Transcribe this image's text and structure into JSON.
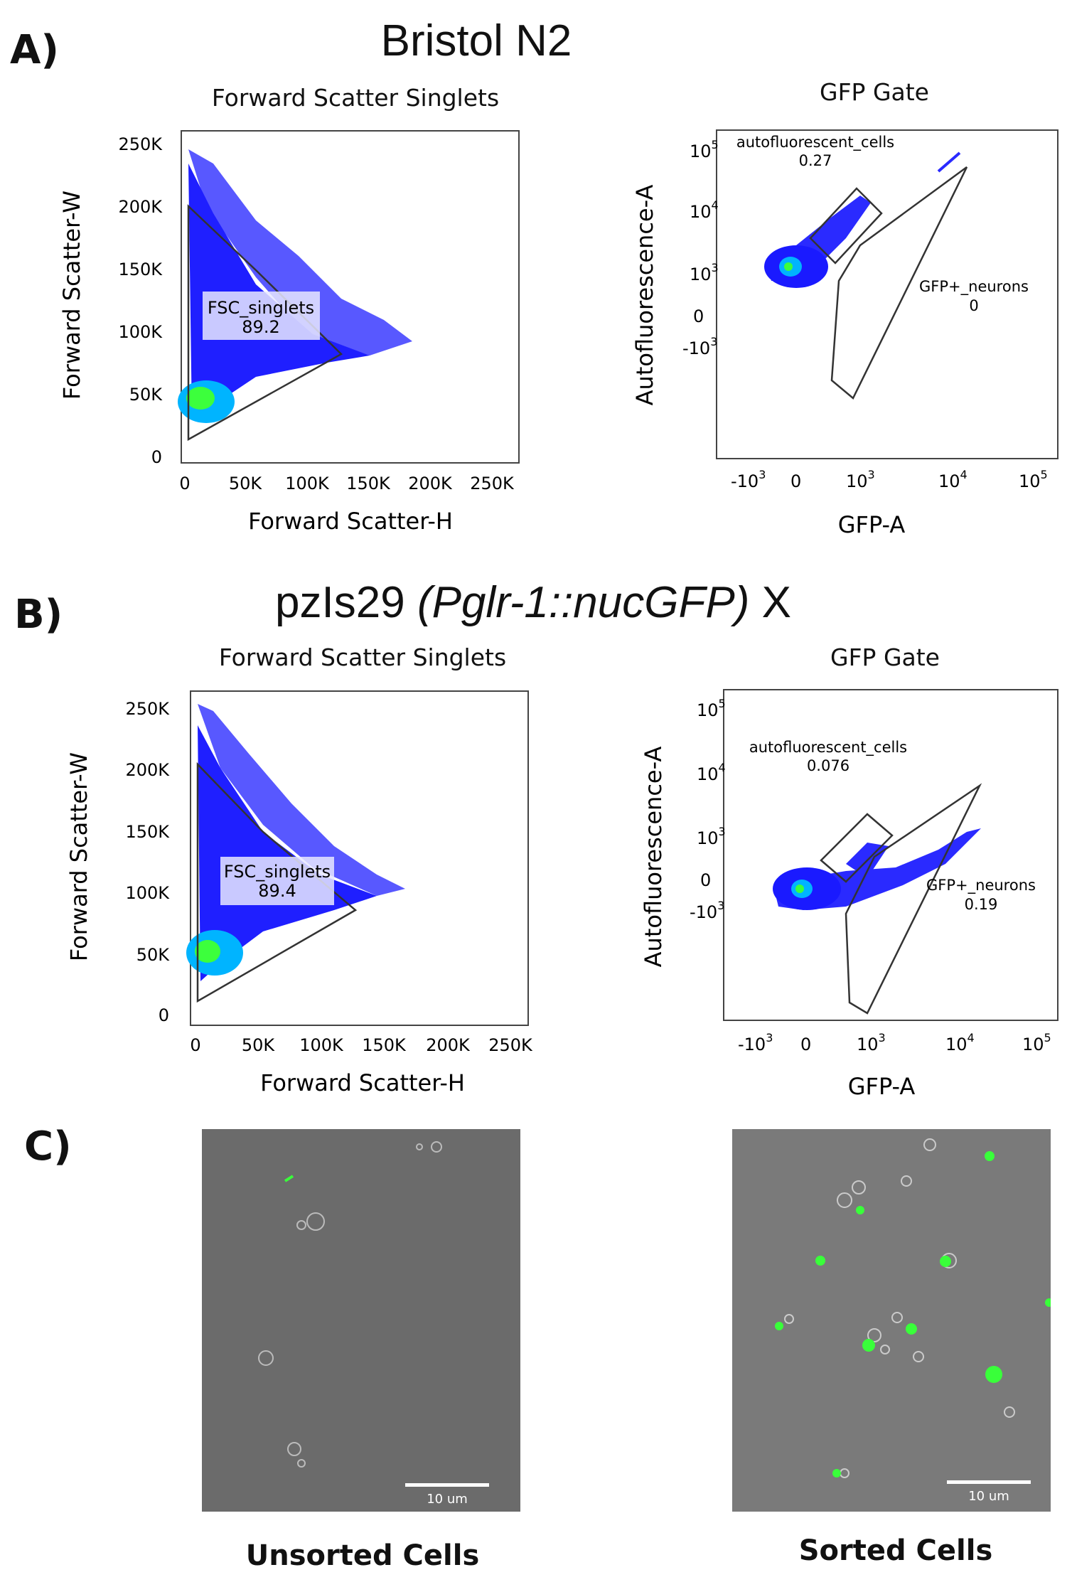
{
  "panels": {
    "A": {
      "letter": "A)",
      "title": "Bristol N2",
      "fsc": {
        "title": "Forward Scatter Singlets",
        "xlabel": "Forward Scatter-H",
        "ylabel": "Forward Scatter-W",
        "x_ticks": [
          "0",
          "50K",
          "100K",
          "150K",
          "200K",
          "250K"
        ],
        "y_ticks": [
          "0",
          "50K",
          "100K",
          "150K",
          "200K",
          "250K"
        ],
        "gate_name": "FSC_singlets",
        "gate_value": "89.2"
      },
      "gfp": {
        "title": "GFP Gate",
        "xlabel": "GFP-A",
        "ylabel": "Autofluorescence-A",
        "auto_gate_name": "autofluorescent_cells",
        "auto_gate_value": "0.27",
        "gfp_gate_name": "GFP+_neurons",
        "gfp_gate_value": "0"
      }
    },
    "B": {
      "letter": "B)",
      "title_plain": "pzIs29 ",
      "title_italic_1": "(P",
      "title_italic_2": "glr-1::nucGFP)",
      "title_tail": " X",
      "fsc": {
        "title": "Forward Scatter Singlets",
        "xlabel": "Forward Scatter-H",
        "ylabel": "Forward Scatter-W",
        "x_ticks": [
          "0",
          "50K",
          "100K",
          "150K",
          "200K",
          "250K"
        ],
        "y_ticks": [
          "0",
          "50K",
          "100K",
          "150K",
          "200K",
          "250K"
        ],
        "gate_name": "FSC_singlets",
        "gate_value": "89.4"
      },
      "gfp": {
        "title": "GFP Gate",
        "xlabel": "GFP-A",
        "ylabel": "Autofluorescence-A",
        "auto_gate_name": "autofluorescent_cells",
        "auto_gate_value": "0.076",
        "gfp_gate_name": "GFP+_neurons",
        "gfp_gate_value": "0.19"
      }
    },
    "C": {
      "letter": "C)",
      "unsorted_caption": "Unsorted Cells",
      "sorted_caption": "Sorted Cells",
      "scale_bar_label": "10 um"
    }
  },
  "log_axis": {
    "base": "10",
    "exp_neg3": "3",
    "exp_3": "3",
    "exp_4": "4",
    "exp_5": "5",
    "neg_prefix": "-10",
    "zero": "0"
  },
  "colors": {
    "density_low": "#2a2aff",
    "density_mid": "#00b4ff",
    "density_high": "#3cff3c",
    "gfp_green": "#39ff3a",
    "micrograph_bg": "#6a6a6a"
  }
}
